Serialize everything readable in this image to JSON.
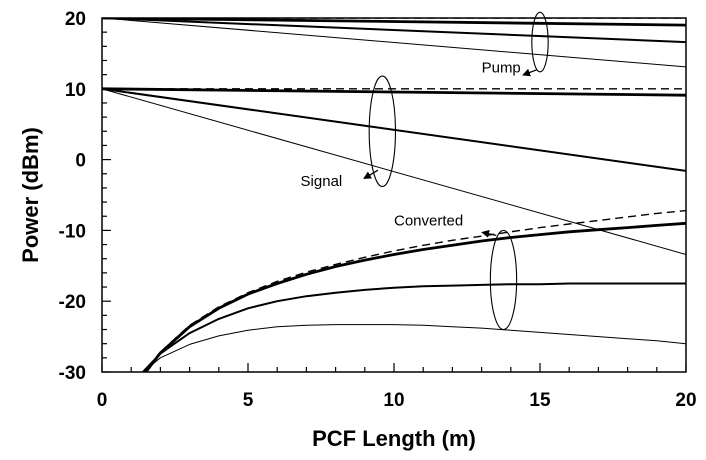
{
  "chart_data": {
    "type": "line",
    "xlabel": "PCF Length (m)",
    "ylabel": "Power (dBm)",
    "xlim": [
      0,
      20
    ],
    "ylim": [
      -30,
      20
    ],
    "x_ticks": [
      0,
      5,
      10,
      15,
      20
    ],
    "y_ticks": [
      -30,
      -20,
      -10,
      0,
      10,
      20
    ],
    "grid": false,
    "legend": "none",
    "annotations": {
      "pump": "Pump",
      "signal": "Signal",
      "converted": "Converted"
    },
    "series": [
      {
        "group": "pump",
        "style": "dashed",
        "x": [
          0,
          20
        ],
        "y": [
          20,
          20
        ]
      },
      {
        "group": "pump",
        "style": "thick",
        "x": [
          0,
          20
        ],
        "y": [
          20,
          19
        ]
      },
      {
        "group": "pump",
        "style": "medium",
        "x": [
          0,
          20
        ],
        "y": [
          20,
          16.6
        ]
      },
      {
        "group": "pump",
        "style": "thin",
        "x": [
          0,
          20
        ],
        "y": [
          20,
          13.1
        ]
      },
      {
        "group": "signal",
        "style": "dashed",
        "x": [
          0,
          20
        ],
        "y": [
          10,
          10
        ]
      },
      {
        "group": "signal",
        "style": "thick",
        "x": [
          0,
          20
        ],
        "y": [
          10,
          9.1
        ]
      },
      {
        "group": "signal",
        "style": "medium",
        "x": [
          0,
          20
        ],
        "y": [
          10,
          -1.6
        ]
      },
      {
        "group": "signal",
        "style": "thin",
        "x": [
          0,
          20
        ],
        "y": [
          10,
          -13.4
        ]
      },
      {
        "group": "converted",
        "style": "dashed",
        "x": [
          1.5,
          2,
          3,
          4,
          5,
          6,
          7,
          8,
          9,
          10,
          11,
          12,
          13,
          14,
          15,
          16,
          17,
          18,
          19,
          20
        ],
        "y": [
          -30,
          -27.2,
          -23.4,
          -20.8,
          -18.8,
          -17.2,
          -15.9,
          -14.8,
          -13.8,
          -12.9,
          -12.1,
          -11.4,
          -10.8,
          -10.2,
          -9.6,
          -9.1,
          -8.6,
          -8.1,
          -7.6,
          -7.2
        ]
      },
      {
        "group": "converted",
        "style": "thick",
        "x": [
          1.5,
          2,
          3,
          4,
          5,
          6,
          7,
          8,
          9,
          10,
          11,
          12,
          13,
          14,
          15,
          16,
          17,
          18,
          19,
          20
        ],
        "y": [
          -30,
          -27.3,
          -23.6,
          -21.0,
          -19.0,
          -17.5,
          -16.2,
          -15.1,
          -14.2,
          -13.4,
          -12.7,
          -12.1,
          -11.5,
          -11.0,
          -10.6,
          -10.2,
          -9.9,
          -9.6,
          -9.3,
          -9.0
        ]
      },
      {
        "group": "converted",
        "style": "medium",
        "x": [
          1.4,
          2,
          3,
          4,
          5,
          6,
          7,
          8,
          9,
          10,
          11,
          12,
          13,
          14,
          15,
          16,
          17,
          18,
          19,
          20
        ],
        "y": [
          -30,
          -27.4,
          -24.5,
          -22.5,
          -21.0,
          -20.0,
          -19.3,
          -18.8,
          -18.4,
          -18.1,
          -17.9,
          -17.8,
          -17.7,
          -17.6,
          -17.6,
          -17.5,
          -17.5,
          -17.5,
          -17.5,
          -17.5
        ]
      },
      {
        "group": "converted",
        "style": "thin",
        "x": [
          1.4,
          2,
          3,
          4,
          5,
          6,
          7,
          8,
          9,
          10,
          11,
          12,
          13,
          14,
          15,
          16,
          17,
          18,
          19,
          20
        ],
        "y": [
          -30,
          -28.0,
          -26.1,
          -24.9,
          -24.1,
          -23.6,
          -23.4,
          -23.3,
          -23.3,
          -23.3,
          -23.4,
          -23.6,
          -23.8,
          -24.1,
          -24.4,
          -24.7,
          -25.0,
          -25.3,
          -25.6,
          -26.0
        ]
      }
    ]
  }
}
